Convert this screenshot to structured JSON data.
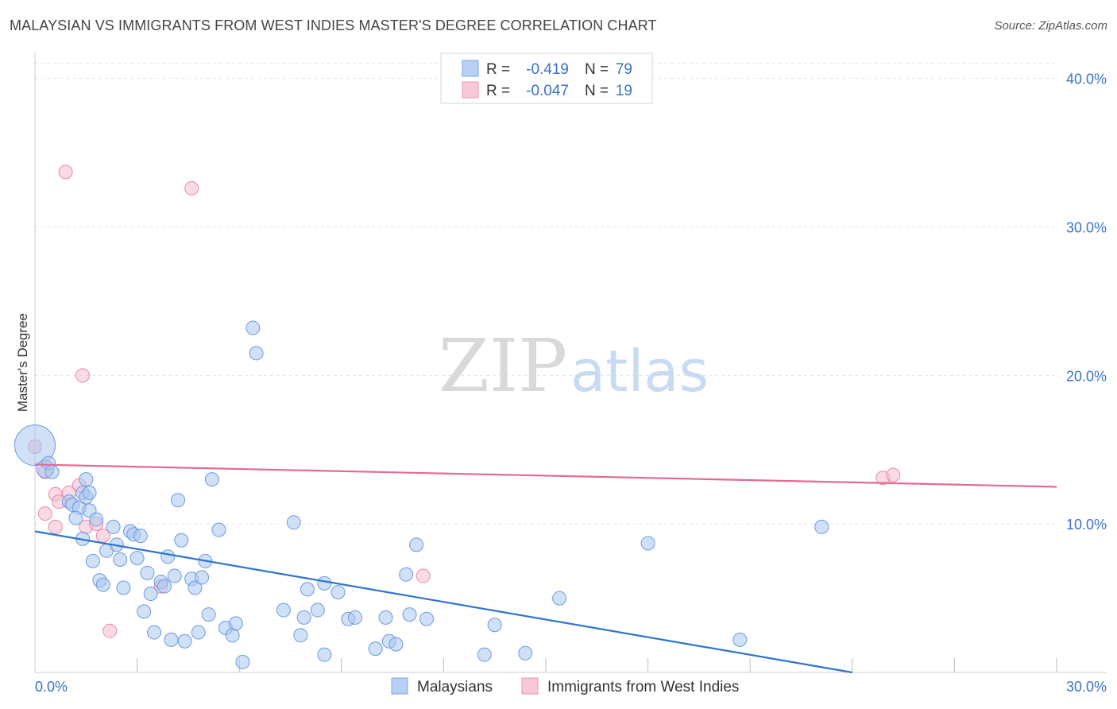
{
  "header": {
    "title": "MALAYSIAN VS IMMIGRANTS FROM WEST INDIES MASTER'S DEGREE CORRELATION CHART",
    "source": "Source: ZipAtlas.com"
  },
  "watermark": {
    "zip": "ZIP",
    "atlas": "atlas"
  },
  "legend": {
    "r_label": "R =",
    "n_label": "N =",
    "rows": [
      {
        "r": "-0.419",
        "n": "79"
      },
      {
        "r": "-0.047",
        "n": "19"
      }
    ]
  },
  "colors": {
    "blue_fill": "#a9c7f0",
    "blue_stroke": "#6c9be0",
    "blue_line": "#2f73d0",
    "pink_fill": "#f5bed0",
    "pink_stroke": "#e88aa8",
    "pink_line": "#e36b93"
  },
  "chart_data": {
    "type": "scatter",
    "title": "MALAYSIAN VS IMMIGRANTS FROM WEST INDIES MASTER'S DEGREE CORRELATION CHART",
    "xlabel": "",
    "ylabel": "Master's Degree",
    "xlim": [
      0,
      30
    ],
    "ylim": [
      0,
      41
    ],
    "x_tick_labels": [
      "0.0%",
      "30.0%"
    ],
    "y_ticks": [
      10,
      20,
      30,
      40
    ],
    "y_tick_labels": [
      "10.0%",
      "20.0%",
      "30.0%",
      "40.0%"
    ],
    "grid": true,
    "series": [
      {
        "name": "Malaysians",
        "r": -0.419,
        "n": 79,
        "trend": {
          "x": [
            0,
            24.0
          ],
          "y": [
            9.5,
            0.0
          ]
        },
        "points": [
          [
            0.0,
            15.3,
            3
          ],
          [
            0.3,
            13.7,
            1.3
          ],
          [
            0.4,
            14.1,
            1
          ],
          [
            0.5,
            13.5,
            1
          ],
          [
            1.0,
            11.5,
            1
          ],
          [
            1.1,
            11.3,
            1
          ],
          [
            1.3,
            11.1,
            1
          ],
          [
            1.4,
            12.1,
            1
          ],
          [
            1.2,
            10.4,
            1
          ],
          [
            1.4,
            9.0,
            1
          ],
          [
            1.5,
            13.0,
            1
          ],
          [
            1.5,
            11.8,
            1
          ],
          [
            1.6,
            12.1,
            1
          ],
          [
            1.6,
            10.9,
            1
          ],
          [
            1.7,
            7.5,
            1
          ],
          [
            1.8,
            10.3,
            1
          ],
          [
            1.9,
            6.2,
            1
          ],
          [
            2.0,
            5.9,
            1
          ],
          [
            2.1,
            8.2,
            1
          ],
          [
            2.3,
            9.8,
            1
          ],
          [
            2.4,
            8.6,
            1
          ],
          [
            2.5,
            7.6,
            1
          ],
          [
            2.6,
            5.7,
            1
          ],
          [
            2.8,
            9.5,
            1
          ],
          [
            2.9,
            9.3,
            1
          ],
          [
            3.0,
            7.7,
            1
          ],
          [
            3.1,
            9.2,
            1
          ],
          [
            3.2,
            4.1,
            1
          ],
          [
            3.3,
            6.7,
            1
          ],
          [
            3.4,
            5.3,
            1
          ],
          [
            3.5,
            2.7,
            1
          ],
          [
            3.7,
            6.1,
            1
          ],
          [
            3.8,
            5.8,
            1
          ],
          [
            3.9,
            7.8,
            1
          ],
          [
            4.0,
            2.2,
            1
          ],
          [
            4.1,
            6.5,
            1
          ],
          [
            4.2,
            11.6,
            1
          ],
          [
            4.3,
            8.9,
            1
          ],
          [
            4.4,
            2.1,
            1
          ],
          [
            4.6,
            6.3,
            1
          ],
          [
            4.7,
            5.7,
            1
          ],
          [
            4.8,
            2.7,
            1
          ],
          [
            4.9,
            6.4,
            1
          ],
          [
            5.0,
            7.5,
            1
          ],
          [
            5.1,
            3.9,
            1
          ],
          [
            5.2,
            13.0,
            1
          ],
          [
            5.4,
            9.6,
            1
          ],
          [
            5.6,
            3.0,
            1
          ],
          [
            5.8,
            2.5,
            1
          ],
          [
            5.9,
            3.3,
            1
          ],
          [
            6.1,
            0.7,
            1
          ],
          [
            6.4,
            23.2,
            1
          ],
          [
            6.5,
            21.5,
            1
          ],
          [
            7.3,
            4.2,
            1
          ],
          [
            7.6,
            10.1,
            1
          ],
          [
            7.8,
            2.5,
            1
          ],
          [
            7.9,
            3.7,
            1
          ],
          [
            8.0,
            5.6,
            1
          ],
          [
            8.3,
            4.2,
            1
          ],
          [
            8.5,
            1.2,
            1
          ],
          [
            8.5,
            6.0,
            1
          ],
          [
            8.9,
            5.4,
            1
          ],
          [
            9.2,
            3.6,
            1
          ],
          [
            9.4,
            3.7,
            1
          ],
          [
            10.0,
            1.6,
            1
          ],
          [
            10.3,
            3.7,
            1
          ],
          [
            10.4,
            2.1,
            1
          ],
          [
            10.6,
            1.9,
            1
          ],
          [
            10.9,
            6.6,
            1
          ],
          [
            11.0,
            3.9,
            1
          ],
          [
            11.2,
            8.6,
            1
          ],
          [
            11.5,
            3.6,
            1
          ],
          [
            13.2,
            1.2,
            1
          ],
          [
            13.5,
            3.2,
            1
          ],
          [
            14.4,
            1.3,
            1
          ],
          [
            15.4,
            5.0,
            1
          ],
          [
            18.0,
            8.7,
            1
          ],
          [
            20.7,
            2.2,
            1
          ],
          [
            23.1,
            9.8,
            1
          ]
        ]
      },
      {
        "name": "Immigrants from West Indies",
        "r": -0.047,
        "n": 19,
        "trend": {
          "x": [
            0,
            30
          ],
          "y": [
            14.0,
            12.5
          ]
        },
        "points": [
          [
            0.0,
            15.2,
            1
          ],
          [
            0.3,
            13.5,
            1
          ],
          [
            0.3,
            10.7,
            1
          ],
          [
            0.6,
            12.0,
            1
          ],
          [
            0.6,
            9.8,
            1
          ],
          [
            0.7,
            11.5,
            1
          ],
          [
            0.9,
            33.7,
            1
          ],
          [
            1.0,
            12.1,
            1
          ],
          [
            1.3,
            12.6,
            1
          ],
          [
            1.4,
            20.0,
            1
          ],
          [
            1.5,
            9.8,
            1
          ],
          [
            1.8,
            10.0,
            1
          ],
          [
            2.0,
            9.2,
            1
          ],
          [
            2.2,
            2.8,
            1
          ],
          [
            3.7,
            5.8,
            1
          ],
          [
            4.6,
            32.6,
            1
          ],
          [
            11.4,
            6.5,
            1
          ],
          [
            24.9,
            13.1,
            1
          ],
          [
            25.2,
            13.3,
            1
          ]
        ]
      }
    ]
  }
}
